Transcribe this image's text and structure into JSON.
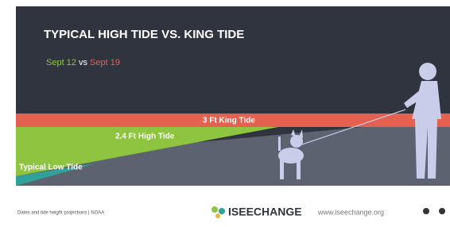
{
  "header": {
    "title": "TYPICAL HIGH TIDE VS. KING TIDE",
    "date_a": "Sept 12",
    "separator": "vs",
    "date_b": "Sept 19"
  },
  "bands": {
    "king_tide": "3 Ft King Tide",
    "high_tide": "2.4 Ft High Tide",
    "low_tide": "Typical Low Tide"
  },
  "footer": {
    "source": "Dates and tide height projections | NOAA",
    "brand": "ISEECHANGE",
    "url": "www.iseechange.org"
  }
}
